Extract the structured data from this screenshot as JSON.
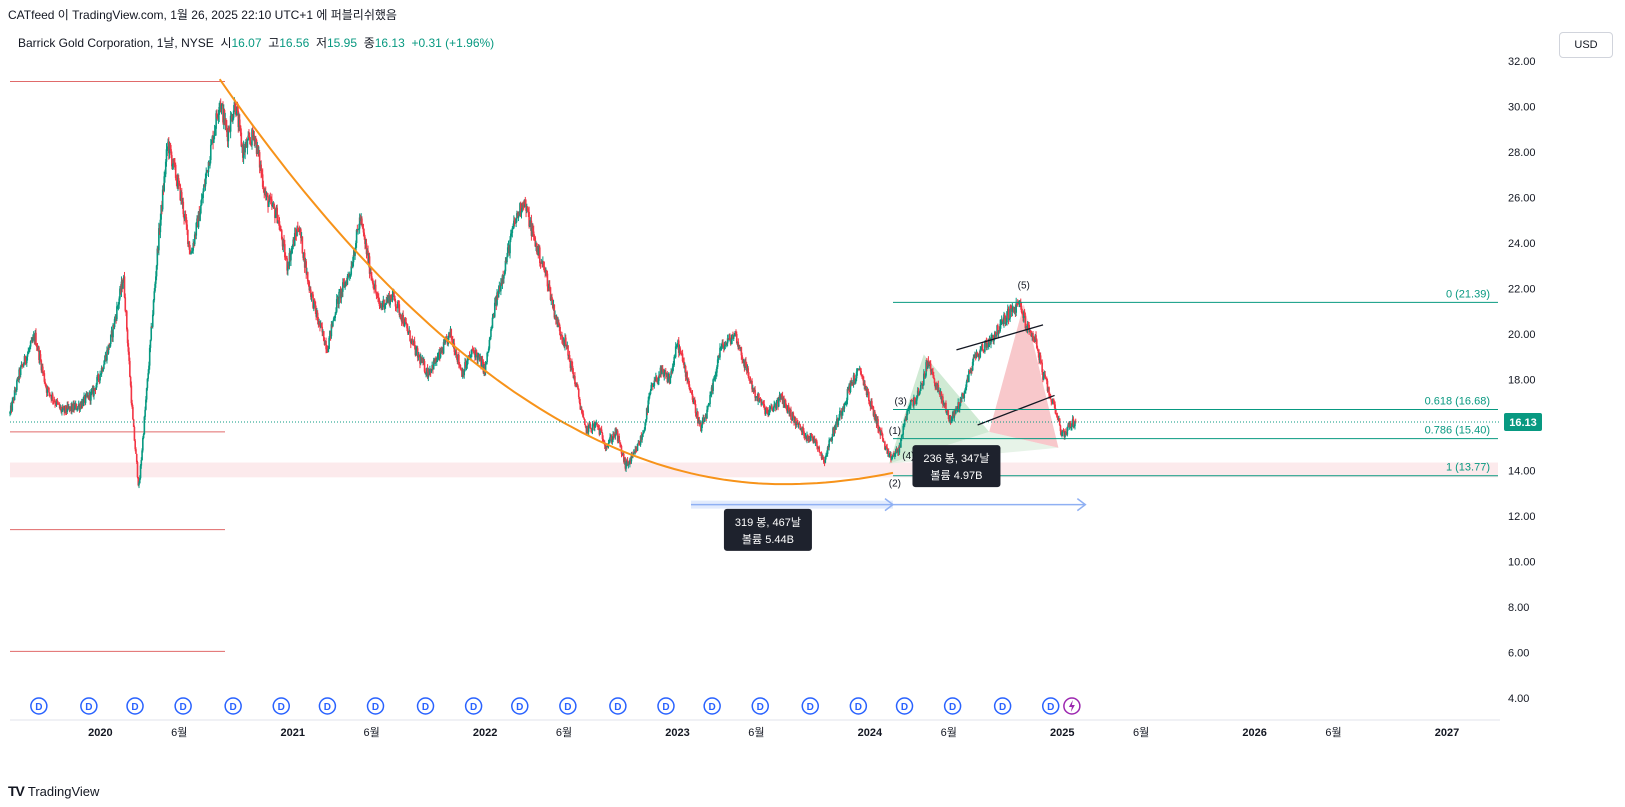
{
  "caption": "CATfeed 이 TradingView.com, 1월 26, 2025 22:10 UTC+1 에 퍼블리쉬했음",
  "legend": {
    "symbol": "Barrick Gold Corporation, 1날, NYSE",
    "open_label": "시",
    "open": "16.07",
    "high_label": "고",
    "high": "16.56",
    "low_label": "저",
    "low": "15.95",
    "close_label": "종",
    "close": "16.13",
    "change": "+0.31 (+1.96%)"
  },
  "currency_button": "USD",
  "brand": "TradingView",
  "chart_data": {
    "type": "candlestick",
    "ylim": [
      4,
      32
    ],
    "y_ticks": [
      "32.00",
      "30.00",
      "28.00",
      "26.00",
      "24.00",
      "22.00",
      "20.00",
      "18.00",
      "16.00",
      "14.00",
      "12.00",
      "10.00",
      "8.00",
      "6.00",
      "4.00"
    ],
    "x_ticks": [
      {
        "label": "2020",
        "t": 2020.0
      },
      {
        "label": "6월",
        "t": 2020.41
      },
      {
        "label": "2021",
        "t": 2021.0
      },
      {
        "label": "6월",
        "t": 2021.41
      },
      {
        "label": "2022",
        "t": 2022.0
      },
      {
        "label": "6월",
        "t": 2022.41
      },
      {
        "label": "2023",
        "t": 2023.0
      },
      {
        "label": "6월",
        "t": 2023.41
      },
      {
        "label": "2024",
        "t": 2024.0
      },
      {
        "label": "6월",
        "t": 2024.41
      },
      {
        "label": "2025",
        "t": 2025.0
      },
      {
        "label": "6월",
        "t": 2025.41
      },
      {
        "label": "2026",
        "t": 2026.0
      },
      {
        "label": "6월",
        "t": 2026.41
      },
      {
        "label": "2027",
        "t": 2027.0
      }
    ],
    "last_price": "16.13",
    "price_path": [
      [
        2019.53,
        16.5
      ],
      [
        2019.58,
        18.3
      ],
      [
        2019.66,
        19.9
      ],
      [
        2019.72,
        17.6
      ],
      [
        2019.8,
        16.6
      ],
      [
        2019.88,
        16.8
      ],
      [
        2019.96,
        17.4
      ],
      [
        2020.0,
        18.3
      ],
      [
        2020.05,
        19.6
      ],
      [
        2020.12,
        22.5
      ],
      [
        2020.17,
        16.0
      ],
      [
        2020.2,
        13.2
      ],
      [
        2020.25,
        18.5
      ],
      [
        2020.3,
        24.0
      ],
      [
        2020.35,
        28.4
      ],
      [
        2020.42,
        26.0
      ],
      [
        2020.47,
        23.5
      ],
      [
        2020.52,
        25.5
      ],
      [
        2020.56,
        27.5
      ],
      [
        2020.62,
        30.3
      ],
      [
        2020.66,
        28.8
      ],
      [
        2020.7,
        30.2
      ],
      [
        2020.74,
        28.0
      ],
      [
        2020.8,
        28.8
      ],
      [
        2020.86,
        26.0
      ],
      [
        2020.92,
        25.2
      ],
      [
        2020.97,
        23.0
      ],
      [
        2021.03,
        24.8
      ],
      [
        2021.08,
        22.3
      ],
      [
        2021.13,
        20.6
      ],
      [
        2021.18,
        19.4
      ],
      [
        2021.23,
        21.4
      ],
      [
        2021.3,
        22.8
      ],
      [
        2021.35,
        25.1
      ],
      [
        2021.4,
        22.9
      ],
      [
        2021.45,
        21.2
      ],
      [
        2021.52,
        21.7
      ],
      [
        2021.58,
        20.5
      ],
      [
        2021.64,
        19.2
      ],
      [
        2021.7,
        18.3
      ],
      [
        2021.76,
        19.0
      ],
      [
        2021.82,
        20.0
      ],
      [
        2021.88,
        18.3
      ],
      [
        2021.94,
        19.3
      ],
      [
        2022.0,
        18.4
      ],
      [
        2022.05,
        21.2
      ],
      [
        2022.1,
        22.9
      ],
      [
        2022.15,
        24.8
      ],
      [
        2022.2,
        25.9
      ],
      [
        2022.26,
        24.0
      ],
      [
        2022.32,
        22.5
      ],
      [
        2022.37,
        20.6
      ],
      [
        2022.42,
        19.5
      ],
      [
        2022.48,
        17.5
      ],
      [
        2022.52,
        15.8
      ],
      [
        2022.58,
        16.0
      ],
      [
        2022.63,
        15.1
      ],
      [
        2022.68,
        15.7
      ],
      [
        2022.73,
        14.2
      ],
      [
        2022.77,
        14.6
      ],
      [
        2022.82,
        15.6
      ],
      [
        2022.86,
        17.5
      ],
      [
        2022.91,
        18.3
      ],
      [
        2022.96,
        18.0
      ],
      [
        2023.0,
        19.6
      ],
      [
        2023.06,
        17.8
      ],
      [
        2023.12,
        15.8
      ],
      [
        2023.16,
        16.7
      ],
      [
        2023.22,
        19.3
      ],
      [
        2023.3,
        20.0
      ],
      [
        2023.34,
        18.9
      ],
      [
        2023.4,
        17.4
      ],
      [
        2023.47,
        16.5
      ],
      [
        2023.54,
        17.2
      ],
      [
        2023.6,
        16.3
      ],
      [
        2023.66,
        15.6
      ],
      [
        2023.72,
        15.3
      ],
      [
        2023.76,
        14.4
      ],
      [
        2023.8,
        15.5
      ],
      [
        2023.86,
        16.8
      ],
      [
        2023.9,
        17.8
      ],
      [
        2023.95,
        18.4
      ],
      [
        2024.0,
        17.0
      ],
      [
        2024.05,
        15.8
      ],
      [
        2024.1,
        14.5
      ],
      [
        2024.15,
        14.9
      ],
      [
        2024.2,
        16.8
      ],
      [
        2024.26,
        17.4
      ],
      [
        2024.3,
        18.8
      ],
      [
        2024.36,
        17.4
      ],
      [
        2024.42,
        16.2
      ],
      [
        2024.48,
        17.2
      ],
      [
        2024.54,
        18.9
      ],
      [
        2024.6,
        19.5
      ],
      [
        2024.66,
        20.1
      ],
      [
        2024.72,
        20.9
      ],
      [
        2024.78,
        21.3
      ],
      [
        2024.82,
        20.2
      ],
      [
        2024.86,
        19.8
      ],
      [
        2024.9,
        18.2
      ],
      [
        2024.94,
        17.2
      ],
      [
        2024.97,
        16.6
      ],
      [
        2025.0,
        15.5
      ],
      [
        2025.04,
        16.0
      ],
      [
        2025.07,
        16.13
      ]
    ],
    "fib_levels": [
      {
        "label": "0 (21.39)",
        "value": 21.39
      },
      {
        "label": "0.618 (16.68)",
        "value": 16.68
      },
      {
        "label": "0.786 (15.40)",
        "value": 15.4
      },
      {
        "label": "1 (13.77)",
        "value": 13.77
      }
    ],
    "wave_labels": [
      {
        "label": "(1)",
        "t": 2024.13,
        "y": 15.6
      },
      {
        "label": "(2)",
        "t": 2024.13,
        "y": 13.3
      },
      {
        "label": "(3)",
        "t": 2024.16,
        "y": 16.9
      },
      {
        "label": "(4)",
        "t": 2024.2,
        "y": 14.5
      },
      {
        "label": "(5)",
        "t": 2024.8,
        "y": 22.0
      }
    ],
    "range_boxes": [
      {
        "bars": "319 봉, 467날",
        "volume": "볼륨 5.44B",
        "t": 2023.47,
        "y": 11.7
      },
      {
        "bars": "236 봉, 347날",
        "volume": "볼륨 4.97B",
        "t": 2024.45,
        "y": 14.5
      }
    ],
    "dividend_marker": "D",
    "dividend_dates": [
      2019.68,
      2019.94,
      2020.18,
      2020.43,
      2020.69,
      2020.94,
      2021.18,
      2021.43,
      2021.69,
      2021.94,
      2022.18,
      2022.43,
      2022.69,
      2022.94,
      2023.18,
      2023.43,
      2023.69,
      2023.94,
      2024.18,
      2024.43,
      2024.69,
      2024.94
    ],
    "colors": {
      "up": "#089981",
      "down": "#f23645",
      "arc": "#f7931a",
      "fib": "#089981",
      "support": "#e06a6a",
      "range": "#8fb0f3"
    }
  }
}
